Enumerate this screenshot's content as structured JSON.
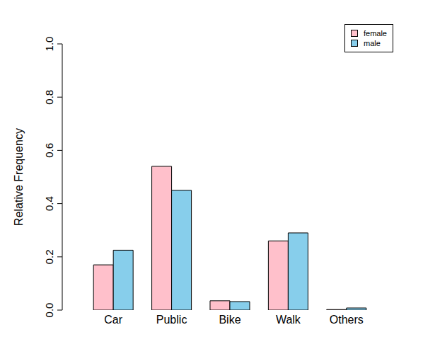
{
  "chart_data": {
    "type": "bar",
    "y_label": "Relative Frequency",
    "categories": [
      "Car",
      "Public",
      "Bike",
      "Walk",
      "Others"
    ],
    "series": [
      {
        "name": "female",
        "color": "#FFC0CB",
        "values": [
          0.17,
          0.54,
          0.035,
          0.26,
          0.002
        ]
      },
      {
        "name": "male",
        "color": "#87CEEB",
        "values": [
          0.225,
          0.45,
          0.032,
          0.29,
          0.008
        ]
      }
    ],
    "ylim": [
      0,
      1
    ],
    "yticks": [
      {
        "value": 0,
        "label": "0.0"
      },
      0.2,
      0.4,
      0.6,
      0.8,
      {
        "value": 1,
        "label": "1.0"
      }
    ],
    "grid": false,
    "legend": "top-right"
  }
}
